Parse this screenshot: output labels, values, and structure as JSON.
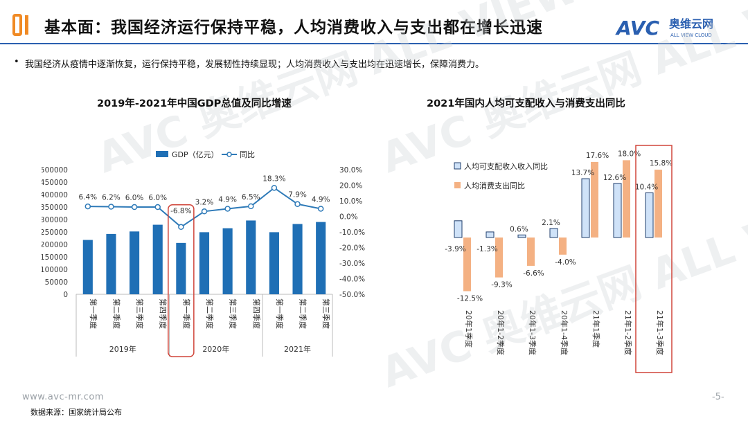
{
  "header": {
    "number": "01",
    "title": "基本面：我国经济运行保持平稳，人均消费收入与支出都在增长迅速",
    "brand_cn": "奥维云网",
    "brand_en": "ALL VIEW CLOUD",
    "brand_logo_text": "AVC"
  },
  "bullet": "我国经济从疫情中逐渐恢复，运行保持平稳，发展韧性持续显现；人均消费收入与支出均在迅速增长，保障消费力。",
  "watermark": "AVC 奥维云网 ALL VIEW CLOUD",
  "colors": {
    "accent": "#2a5fb0",
    "bar": "#1f6fb5",
    "line": "#2e7ab8",
    "income": "#cfe2f8",
    "income_stroke": "#1f3d6b",
    "spend": "#f4b183",
    "highlight": "#d0453a",
    "logo_orange": "#f08a24"
  },
  "footer": {
    "site": "www.avc-mr.com",
    "source": "数据来源：国家统计局公布",
    "page": "-5-"
  },
  "chart_data": [
    {
      "type": "bar",
      "title": "2019年-2021年中国GDP总值及同比增速",
      "legend": [
        "GDP（亿元）",
        "同比"
      ],
      "categories": [
        "第一季度",
        "第二季度",
        "第三季度",
        "第四季度",
        "第一季度",
        "第二季度",
        "第三季度",
        "第四季度",
        "第一季度",
        "第二季度",
        "第三季度"
      ],
      "groups": [
        {
          "label": "2019年",
          "count": 4
        },
        {
          "label": "2020年",
          "count": 4
        },
        {
          "label": "2021年",
          "count": 3
        }
      ],
      "series": [
        {
          "name": "GDP（亿元）",
          "kind": "bar",
          "axis": "left",
          "values": [
            218000,
            242000,
            252000,
            279000,
            206000,
            249000,
            265000,
            296000,
            249000,
            282000,
            290000
          ]
        },
        {
          "name": "同比",
          "kind": "line",
          "axis": "right",
          "values": [
            6.4,
            6.2,
            6.0,
            6.0,
            -6.8,
            3.2,
            4.9,
            6.5,
            18.3,
            7.9,
            4.9
          ],
          "labels": [
            "6.4%",
            "6.2%",
            "6.0%",
            "6.0%",
            "-6.8%",
            "3.2%",
            "4.9%",
            "6.5%",
            "18.3%",
            "7.9%",
            "4.9%"
          ]
        }
      ],
      "ylim_left": [
        0,
        500000
      ],
      "yticks_left": [
        "0",
        "50000",
        "100000",
        "150000",
        "200000",
        "250000",
        "300000",
        "350000",
        "400000",
        "450000",
        "500000"
      ],
      "ylim_right": [
        -50,
        30
      ],
      "yticks_right": [
        "-50.0%",
        "-40.0%",
        "-30.0%",
        "-20.0%",
        "-10.0%",
        "0.0%",
        "10.0%",
        "20.0%",
        "30.0%"
      ],
      "highlight_index": 4
    },
    {
      "type": "bar",
      "title": "2021年国内人均可支配收入与消费支出同比",
      "legend": [
        "人均可支配收入收入同比",
        "人均消费支出同比"
      ],
      "categories": [
        "20年1季度",
        "20年1-2季度",
        "20年1-3季度",
        "20年1-4季度",
        "21年1季度",
        "21年1-2季度",
        "21年1-3季度"
      ],
      "series": [
        {
          "name": "人均可支配收入收入同比",
          "values": [
            -3.9,
            -1.3,
            0.6,
            2.1,
            13.7,
            12.6,
            10.4
          ],
          "labels": [
            "-3.9%",
            "-1.3%",
            "0.6%",
            "2.1%",
            "13.7%",
            "12.6%",
            "10.4%"
          ]
        },
        {
          "name": "人均消费支出同比",
          "values": [
            -12.5,
            -9.3,
            -6.6,
            -4.0,
            17.6,
            18.0,
            15.8
          ],
          "labels": [
            "-12.5%",
            "-9.3%",
            "-6.6%",
            "-4.0%",
            "17.6%",
            "18.0%",
            "15.8%"
          ]
        }
      ],
      "highlight_index": 6
    }
  ]
}
